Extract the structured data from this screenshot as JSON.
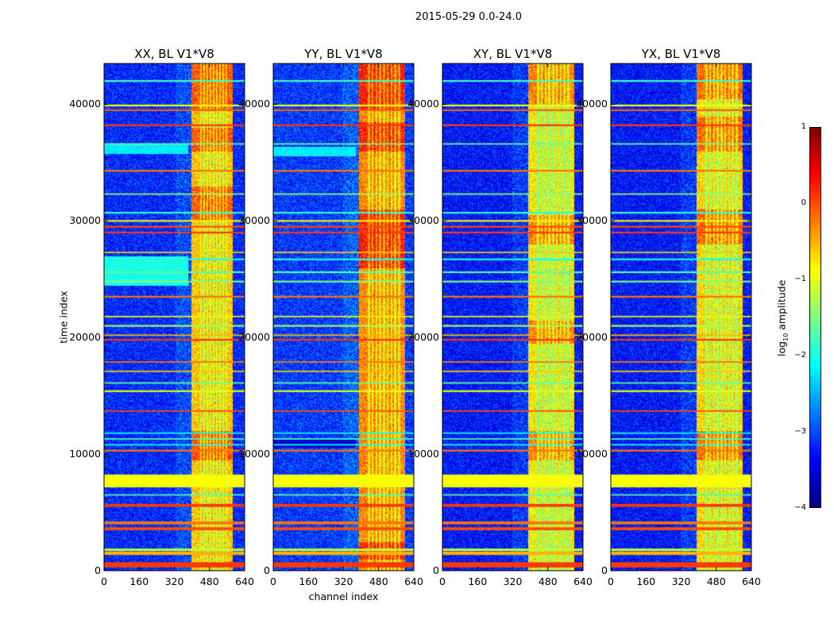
{
  "chart_data": {
    "type": "heatmap",
    "suptitle": "2015-05-29 0.0-24.0",
    "xlabel": "channel index",
    "ylabel": "time index",
    "xlim": [
      0,
      640
    ],
    "ylim": [
      0,
      43500
    ],
    "xticks": [
      0,
      160,
      320,
      480,
      640
    ],
    "yticks": [
      0,
      10000,
      20000,
      30000,
      40000
    ],
    "colorscale": "jet",
    "colorbar": {
      "label_main": "log",
      "label_sub": "10",
      "label_rest": " amplitude",
      "range": [
        -4,
        1
      ],
      "ticks": [
        1,
        0,
        -1,
        -2,
        -3,
        -4
      ]
    },
    "panels": [
      {
        "title": "XX, BL V1*V8",
        "band": [
          395,
          585
        ],
        "background_level": -3.2,
        "band_level": -0.6,
        "bright_rows": [
          [
            30000,
            33000
          ],
          [
            36000,
            38000
          ],
          [
            39500,
            43500
          ],
          [
            9500,
            12000
          ]
        ],
        "dull_rows": [
          [
            35800,
            36600,
            -2.2
          ],
          [
            24500,
            27000,
            -2.0
          ]
        ]
      },
      {
        "title": "YY, BL V1*V8",
        "band": [
          390,
          600
        ],
        "background_level": -3.1,
        "band_level": -0.3,
        "bright_rows": [
          [
            26000,
            31000
          ],
          [
            36000,
            38500
          ],
          [
            39500,
            43500
          ],
          [
            1000,
            2500
          ]
        ],
        "dull_rows": [
          [
            35600,
            36400,
            -2.2
          ],
          [
            10600,
            11300,
            -3.6
          ]
        ]
      },
      {
        "title": "XY, BL V1*V8",
        "band": [
          390,
          600
        ],
        "background_level": -3.3,
        "band_level": -0.8,
        "bright_rows": [
          [
            28000,
            30500
          ],
          [
            9500,
            12000
          ],
          [
            19500,
            21500
          ],
          [
            40000,
            43500
          ]
        ],
        "dull_rows": []
      },
      {
        "title": "YX, BL V1*V8",
        "band": [
          390,
          600
        ],
        "background_level": -3.3,
        "band_level": -0.7,
        "bright_rows": [
          [
            28000,
            31000
          ],
          [
            36000,
            39000
          ],
          [
            40500,
            43500
          ],
          [
            9500,
            12000
          ]
        ],
        "dull_rows": []
      }
    ],
    "flagged_rows": [
      {
        "y": 500,
        "w": 450,
        "v": 0.1
      },
      {
        "y": 1500,
        "w": 300,
        "v": -0.5
      },
      {
        "y": 1800,
        "w": 200,
        "v": -1.2
      },
      {
        "y": 3600,
        "w": 250,
        "v": 0.0
      },
      {
        "y": 4100,
        "w": 250,
        "v": -0.2
      },
      {
        "y": 5600,
        "w": 250,
        "v": 0.1
      },
      {
        "y": 6500,
        "w": 120,
        "v": -1.7
      },
      {
        "y": 7700,
        "w": 1100,
        "v": -0.9
      },
      {
        "y": 10300,
        "w": 150,
        "v": -0.2
      },
      {
        "y": 10800,
        "w": 120,
        "v": -2.0
      },
      {
        "y": 11300,
        "w": 120,
        "v": -1.8
      },
      {
        "y": 11800,
        "w": 120,
        "v": -2.1
      },
      {
        "y": 13700,
        "w": 120,
        "v": 0.0
      },
      {
        "y": 15400,
        "w": 150,
        "v": -1.0
      },
      {
        "y": 16100,
        "w": 120,
        "v": -1.6
      },
      {
        "y": 17100,
        "w": 120,
        "v": -0.6
      },
      {
        "y": 17900,
        "w": 120,
        "v": -0.2
      },
      {
        "y": 19800,
        "w": 150,
        "v": 0.1
      },
      {
        "y": 20200,
        "w": 120,
        "v": -0.5
      },
      {
        "y": 21000,
        "w": 150,
        "v": -1.3
      },
      {
        "y": 21800,
        "w": 120,
        "v": -0.8
      },
      {
        "y": 23500,
        "w": 150,
        "v": -0.2
      },
      {
        "y": 24800,
        "w": 150,
        "v": -1.5
      },
      {
        "y": 25600,
        "w": 150,
        "v": -1.7
      },
      {
        "y": 26700,
        "w": 150,
        "v": -2.0
      },
      {
        "y": 27300,
        "w": 120,
        "v": -0.6
      },
      {
        "y": 29000,
        "w": 150,
        "v": 0.1
      },
      {
        "y": 29500,
        "w": 150,
        "v": 0.0
      },
      {
        "y": 30000,
        "w": 150,
        "v": -0.8
      },
      {
        "y": 30700,
        "w": 150,
        "v": -1.9
      },
      {
        "y": 32300,
        "w": 120,
        "v": -1.4
      },
      {
        "y": 34300,
        "w": 150,
        "v": -0.2
      },
      {
        "y": 36600,
        "w": 120,
        "v": -1.6
      },
      {
        "y": 38200,
        "w": 150,
        "v": 0.1
      },
      {
        "y": 39500,
        "w": 150,
        "v": -0.1
      },
      {
        "y": 39900,
        "w": 150,
        "v": -0.9
      },
      {
        "y": 42000,
        "w": 150,
        "v": -1.8
      }
    ]
  }
}
